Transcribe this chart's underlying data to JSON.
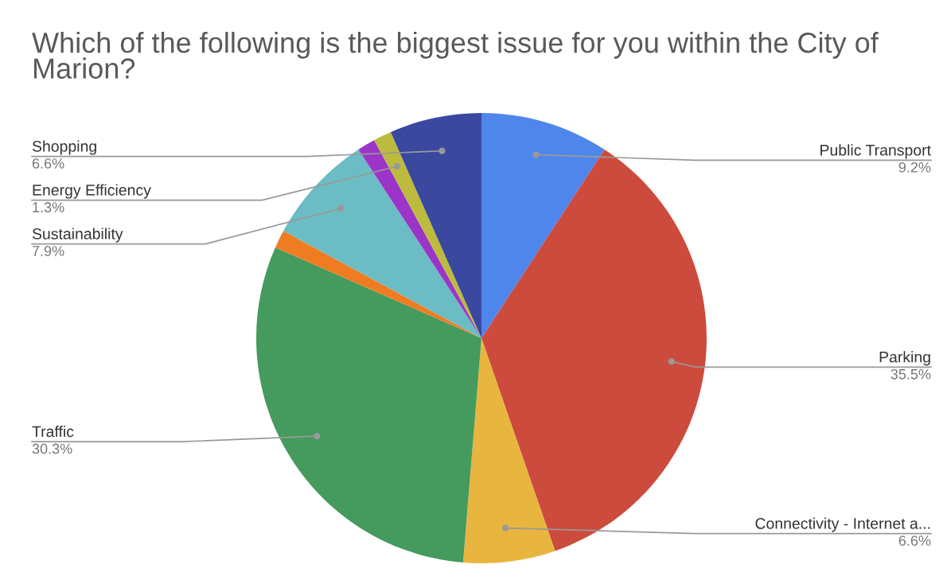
{
  "chart_data": {
    "type": "pie",
    "title": "Which of the following is the biggest issue for you within the City of Marion?",
    "categories": [
      "Public Transport",
      "Parking",
      "Connectivity - Internet a...",
      "Traffic",
      null,
      "Sustainability",
      null,
      "Energy Efficiency",
      "Shopping"
    ],
    "values": [
      9.2,
      35.5,
      6.6,
      30.3,
      1.3,
      7.9,
      1.3,
      1.3,
      6.6
    ],
    "colors": [
      "#4f86ec",
      "#cc4b3c",
      "#e8b53e",
      "#459a5e",
      "#f07c22",
      "#6bbcc4",
      "#9b35c8",
      "#bcbb3d",
      "#3a48a0"
    ],
    "value_labels": [
      "9.2%",
      "35.5%",
      "6.6%",
      "30.3%",
      null,
      "7.9%",
      null,
      "1.3%",
      "6.6%"
    ]
  }
}
